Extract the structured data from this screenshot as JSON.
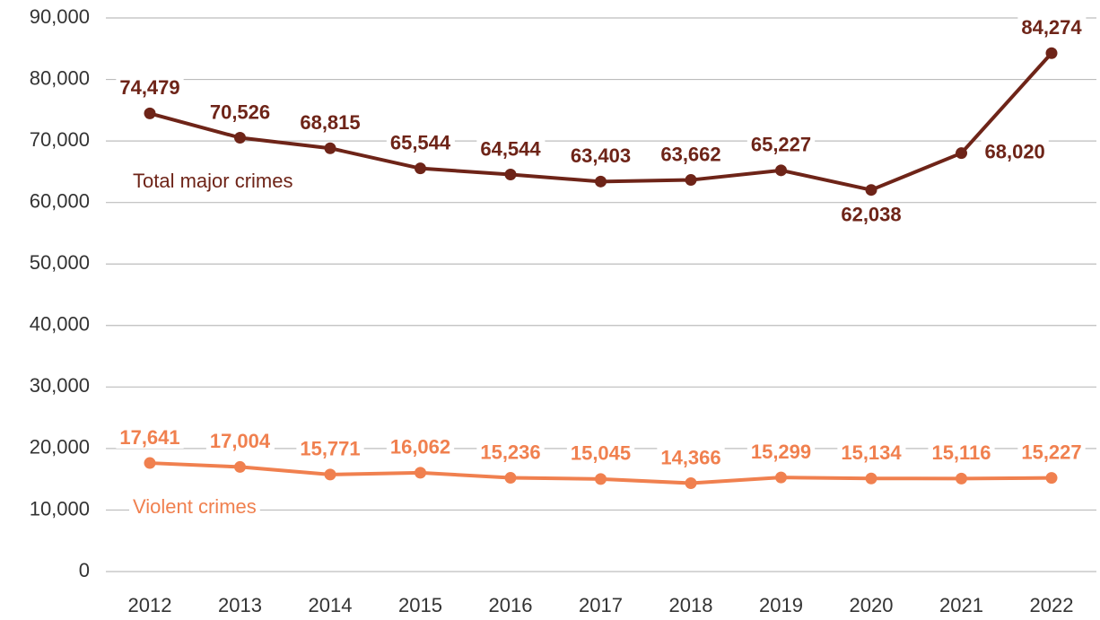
{
  "chart_data": {
    "type": "line",
    "categories": [
      "2012",
      "2013",
      "2014",
      "2015",
      "2016",
      "2017",
      "2018",
      "2019",
      "2020",
      "2021",
      "2022"
    ],
    "series": [
      {
        "name": "Total major crimes",
        "color": "#6e2418",
        "values": [
          74479,
          70526,
          68815,
          65544,
          64544,
          63403,
          63662,
          65227,
          62038,
          68020,
          84274
        ],
        "value_labels": [
          "74,479",
          "70,526",
          "68,815",
          "65,544",
          "64,544",
          "63,403",
          "63,662",
          "65,227",
          "62,038",
          "68,020",
          "84,274"
        ]
      },
      {
        "name": "Violent crimes",
        "color": "#f0804f",
        "values": [
          17641,
          17004,
          15771,
          16062,
          15236,
          15045,
          14366,
          15299,
          15134,
          15116,
          15227
        ],
        "value_labels": [
          "17,641",
          "17,004",
          "15,771",
          "16,062",
          "15,236",
          "15,045",
          "14,366",
          "15,299",
          "15,134",
          "15,116",
          "15,227"
        ]
      }
    ],
    "ylim": [
      0,
      90000
    ],
    "yticks": [
      0,
      {
        "value": 10000,
        "label": "10,000"
      },
      {
        "value": 20000,
        "label": "20,000"
      },
      {
        "value": 30000,
        "label": "30,000"
      },
      {
        "value": 40000,
        "label": "40,000"
      },
      {
        "value": 50000,
        "label": "50,000"
      },
      {
        "value": 60000,
        "label": "60,000"
      },
      {
        "value": 70000,
        "label": "70,000"
      },
      {
        "value": 80000,
        "label": "80,000"
      },
      {
        "value": 90000,
        "label": "90,000"
      }
    ],
    "grid": true
  }
}
